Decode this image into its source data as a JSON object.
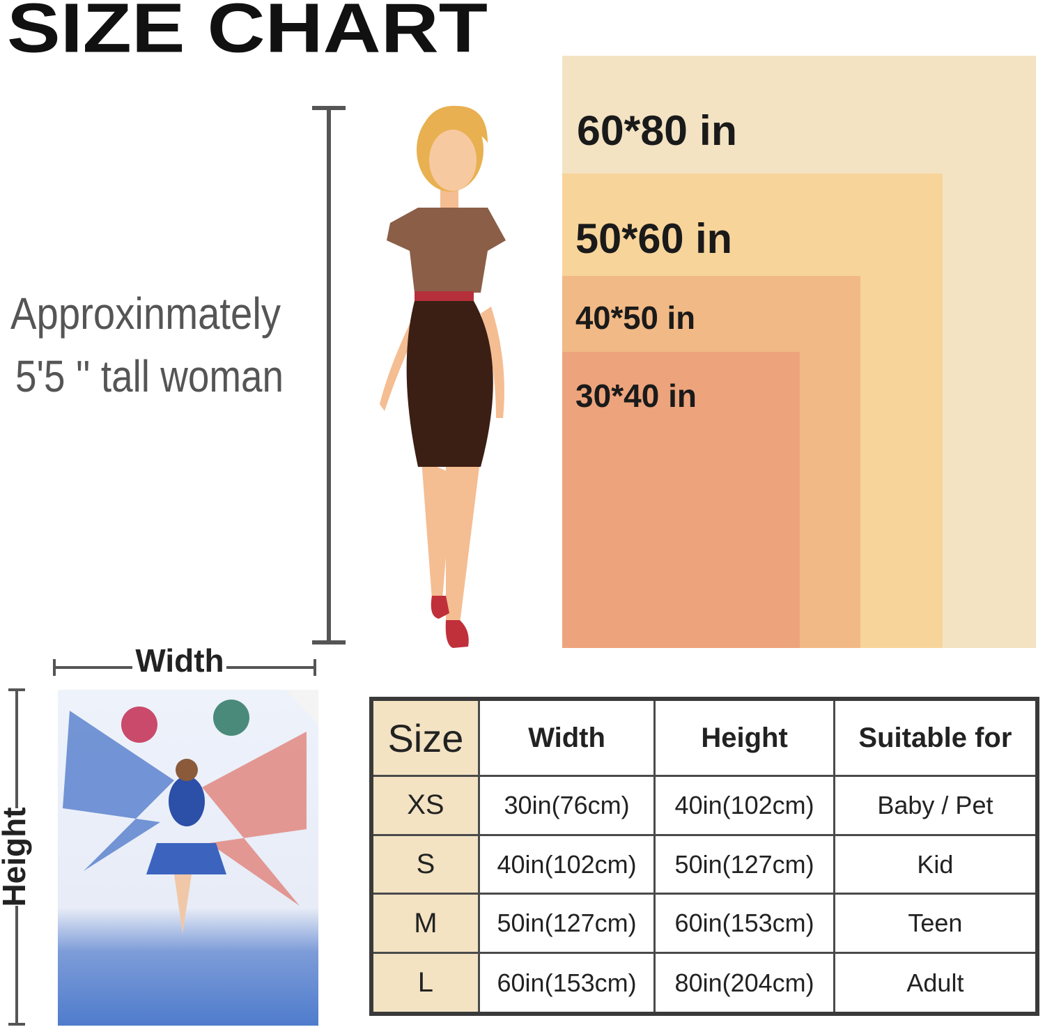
{
  "title": "SIZE CHART",
  "note": [
    "Approxinmately",
    "5'5 '' tall woman"
  ],
  "size_boxes": [
    "60*80 in",
    "50*60 in",
    "40*50 in",
    "30*40 in"
  ],
  "dimension_labels": {
    "width": "Width",
    "height": "Height"
  },
  "table": {
    "header": [
      "Size",
      "Width",
      "Height",
      "Suitable for"
    ],
    "rows": [
      [
        "XS",
        "30in(76cm)",
        "40in(102cm)",
        "Baby / Pet"
      ],
      [
        "S",
        "40in(102cm)",
        "50in(127cm)",
        "Kid"
      ],
      [
        "M",
        "50in(127cm)",
        "60in(153cm)",
        "Teen"
      ],
      [
        "L",
        "60in(153cm)",
        "80in(204cm)",
        "Adult"
      ]
    ]
  }
}
